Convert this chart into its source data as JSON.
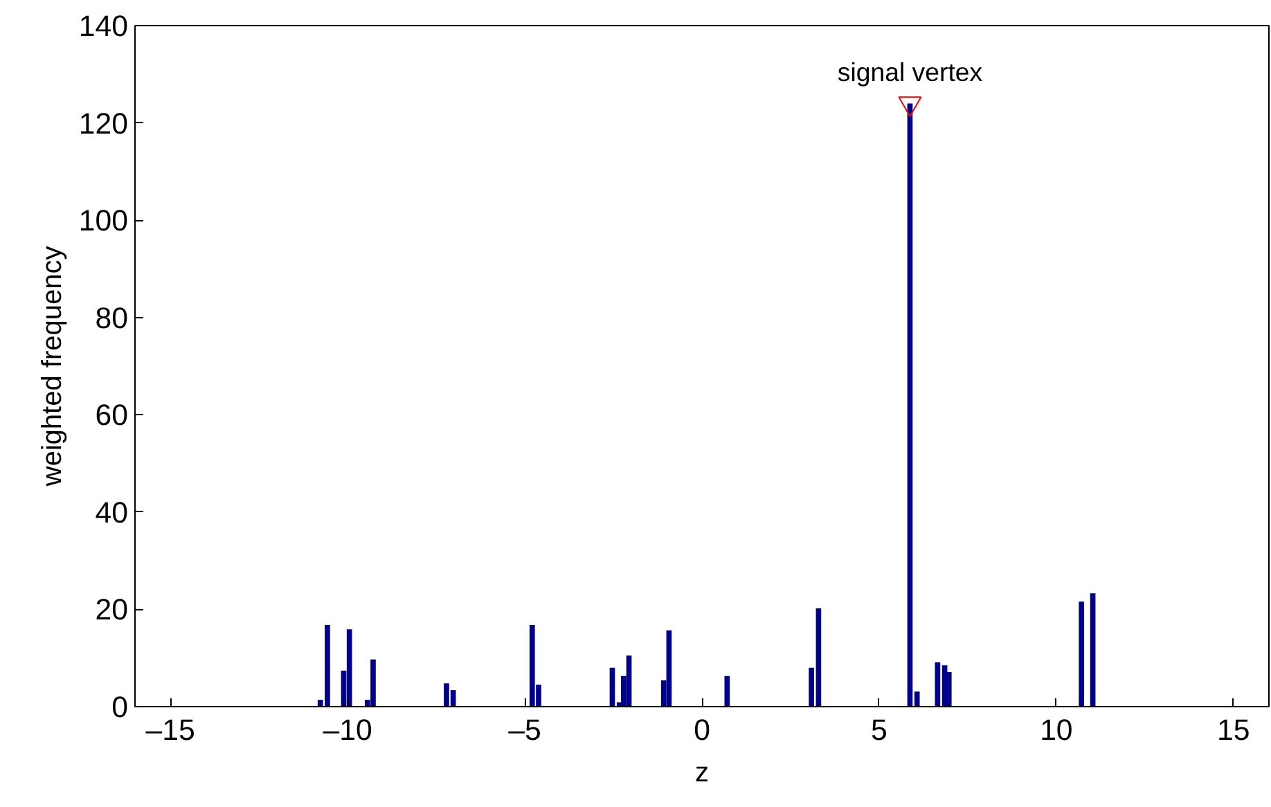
{
  "chart_data": {
    "type": "bar",
    "xlabel": "z",
    "ylabel": "weighted frequency",
    "series": [
      {
        "color": "#00008f",
        "x": [
          -10.77,
          -10.57,
          -10.11,
          -9.95,
          -9.44,
          -9.28,
          -7.21,
          -7.02,
          -4.79,
          -4.61,
          -2.53,
          -2.33,
          -2.21,
          -2.06,
          -1.08,
          -0.93,
          0.71,
          3.09,
          3.29,
          5.87,
          6.07,
          6.65,
          6.85,
          6.97,
          10.71,
          11.03
        ],
        "values": [
          1.4,
          16.8,
          7.4,
          15.9,
          1.4,
          9.7,
          4.8,
          3.4,
          16.8,
          4.5,
          8.0,
          0.9,
          6.3,
          10.5,
          5.4,
          15.7,
          6.3,
          8.0,
          20.2,
          124,
          3.1,
          9.1,
          8.5,
          7.1,
          21.6,
          23.3
        ]
      },
      {
        "type": "scatter",
        "color": "#ff0000",
        "marker": "triangle",
        "x": [
          5.87
        ],
        "values": [
          124
        ]
      }
    ],
    "annotations": [
      {
        "text": "signal vertex",
        "x": 5.87,
        "y": 124
      }
    ],
    "xlim": [
      -16,
      16
    ],
    "ylim": [
      0,
      140
    ],
    "xticks": [
      {
        "value": -15,
        "label": "–15"
      },
      {
        "value": -10,
        "label": "–10"
      },
      {
        "value": -5,
        "label": "–5"
      },
      0,
      5,
      10,
      15
    ],
    "yticks": [
      0,
      20,
      40,
      60,
      80,
      100,
      120,
      140
    ],
    "grid": false
  }
}
